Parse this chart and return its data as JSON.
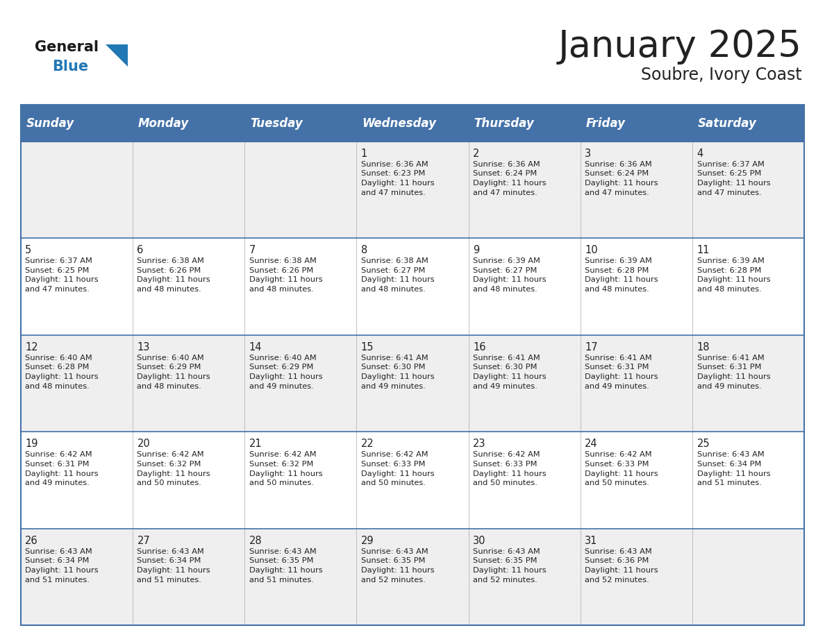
{
  "title": "January 2025",
  "subtitle": "Soubre, Ivory Coast",
  "header_bg_color": "#4472A8",
  "header_text_color": "#FFFFFF",
  "cell_bg_color_odd": "#EFEFEF",
  "cell_bg_color_even": "#FFFFFF",
  "border_color": "#4472A8",
  "grid_color": "#AAAAAA",
  "day_headers": [
    "Sunday",
    "Monday",
    "Tuesday",
    "Wednesday",
    "Thursday",
    "Friday",
    "Saturday"
  ],
  "calendar": [
    [
      "",
      "",
      "",
      "1\nSunrise: 6:36 AM\nSunset: 6:23 PM\nDaylight: 11 hours\nand 47 minutes.",
      "2\nSunrise: 6:36 AM\nSunset: 6:24 PM\nDaylight: 11 hours\nand 47 minutes.",
      "3\nSunrise: 6:36 AM\nSunset: 6:24 PM\nDaylight: 11 hours\nand 47 minutes.",
      "4\nSunrise: 6:37 AM\nSunset: 6:25 PM\nDaylight: 11 hours\nand 47 minutes."
    ],
    [
      "5\nSunrise: 6:37 AM\nSunset: 6:25 PM\nDaylight: 11 hours\nand 47 minutes.",
      "6\nSunrise: 6:38 AM\nSunset: 6:26 PM\nDaylight: 11 hours\nand 48 minutes.",
      "7\nSunrise: 6:38 AM\nSunset: 6:26 PM\nDaylight: 11 hours\nand 48 minutes.",
      "8\nSunrise: 6:38 AM\nSunset: 6:27 PM\nDaylight: 11 hours\nand 48 minutes.",
      "9\nSunrise: 6:39 AM\nSunset: 6:27 PM\nDaylight: 11 hours\nand 48 minutes.",
      "10\nSunrise: 6:39 AM\nSunset: 6:28 PM\nDaylight: 11 hours\nand 48 minutes.",
      "11\nSunrise: 6:39 AM\nSunset: 6:28 PM\nDaylight: 11 hours\nand 48 minutes."
    ],
    [
      "12\nSunrise: 6:40 AM\nSunset: 6:28 PM\nDaylight: 11 hours\nand 48 minutes.",
      "13\nSunrise: 6:40 AM\nSunset: 6:29 PM\nDaylight: 11 hours\nand 48 minutes.",
      "14\nSunrise: 6:40 AM\nSunset: 6:29 PM\nDaylight: 11 hours\nand 49 minutes.",
      "15\nSunrise: 6:41 AM\nSunset: 6:30 PM\nDaylight: 11 hours\nand 49 minutes.",
      "16\nSunrise: 6:41 AM\nSunset: 6:30 PM\nDaylight: 11 hours\nand 49 minutes.",
      "17\nSunrise: 6:41 AM\nSunset: 6:31 PM\nDaylight: 11 hours\nand 49 minutes.",
      "18\nSunrise: 6:41 AM\nSunset: 6:31 PM\nDaylight: 11 hours\nand 49 minutes."
    ],
    [
      "19\nSunrise: 6:42 AM\nSunset: 6:31 PM\nDaylight: 11 hours\nand 49 minutes.",
      "20\nSunrise: 6:42 AM\nSunset: 6:32 PM\nDaylight: 11 hours\nand 50 minutes.",
      "21\nSunrise: 6:42 AM\nSunset: 6:32 PM\nDaylight: 11 hours\nand 50 minutes.",
      "22\nSunrise: 6:42 AM\nSunset: 6:33 PM\nDaylight: 11 hours\nand 50 minutes.",
      "23\nSunrise: 6:42 AM\nSunset: 6:33 PM\nDaylight: 11 hours\nand 50 minutes.",
      "24\nSunrise: 6:42 AM\nSunset: 6:33 PM\nDaylight: 11 hours\nand 50 minutes.",
      "25\nSunrise: 6:43 AM\nSunset: 6:34 PM\nDaylight: 11 hours\nand 51 minutes."
    ],
    [
      "26\nSunrise: 6:43 AM\nSunset: 6:34 PM\nDaylight: 11 hours\nand 51 minutes.",
      "27\nSunrise: 6:43 AM\nSunset: 6:34 PM\nDaylight: 11 hours\nand 51 minutes.",
      "28\nSunrise: 6:43 AM\nSunset: 6:35 PM\nDaylight: 11 hours\nand 51 minutes.",
      "29\nSunrise: 6:43 AM\nSunset: 6:35 PM\nDaylight: 11 hours\nand 52 minutes.",
      "30\nSunrise: 6:43 AM\nSunset: 6:35 PM\nDaylight: 11 hours\nand 52 minutes.",
      "31\nSunrise: 6:43 AM\nSunset: 6:36 PM\nDaylight: 11 hours\nand 52 minutes.",
      ""
    ]
  ],
  "logo_color_general": "#1A1A1A",
  "logo_color_blue": "#2278B5",
  "logo_triangle_color": "#2278B5",
  "text_color_dark": "#222222",
  "title_fontsize": 38,
  "subtitle_fontsize": 17,
  "header_fontsize": 12,
  "cell_day_fontsize": 10.5,
  "cell_text_fontsize": 8.2
}
